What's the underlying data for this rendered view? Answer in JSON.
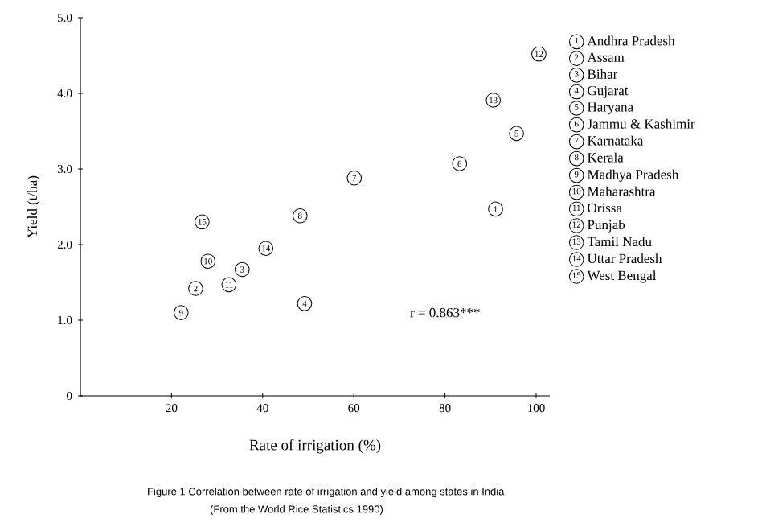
{
  "chart_data": {
    "type": "scatter",
    "title": "Figure 1    Correlation between rate of irrigation and yield among states in India",
    "subtitle": "(From the World Rice Statistics 1990)",
    "xlabel": "Rate of irrigation (%)",
    "ylabel": "Yield (t/ha)",
    "xlim": [
      0,
      103
    ],
    "ylim": [
      0,
      5
    ],
    "xticks": [
      20,
      40,
      60,
      80,
      100
    ],
    "yticks": [
      0,
      {
        "value": 1,
        "label": "1.0"
      },
      {
        "value": 2,
        "label": "2.0"
      },
      {
        "value": 3,
        "label": "3.0"
      },
      {
        "value": 4,
        "label": "4.0"
      },
      {
        "value": 5,
        "label": "5.0"
      }
    ],
    "marker": "circle",
    "legend": "right",
    "grid": false,
    "annotations": [
      "r = 0.863***",
      {
        "text": "1",
        "x": 91.1,
        "y": 2.47
      },
      {
        "text": "2",
        "x": 25.3,
        "y": 1.42
      },
      {
        "text": "3",
        "x": 35.5,
        "y": 1.67
      },
      {
        "text": "4",
        "x": 49.2,
        "y": 1.22
      },
      {
        "text": "5",
        "x": 95.7,
        "y": 3.47
      },
      {
        "text": "6",
        "x": 83.2,
        "y": 3.07
      },
      {
        "text": "7",
        "x": 60.1,
        "y": 2.88
      },
      {
        "text": "8",
        "x": 48.2,
        "y": 2.38
      },
      {
        "text": "9",
        "x": 22.1,
        "y": 1.1
      },
      {
        "text": "10",
        "x": 28.0,
        "y": 1.78
      },
      {
        "text": "11",
        "x": 32.6,
        "y": 1.47
      },
      {
        "text": "12",
        "x": 100.6,
        "y": 4.52
      },
      {
        "text": "13",
        "x": 90.6,
        "y": 3.91
      },
      {
        "text": "14",
        "x": 40.7,
        "y": 1.95
      },
      {
        "text": "15",
        "x": 26.7,
        "y": 2.3
      }
    ],
    "series": [
      {
        "name": "Andhra Pradesh",
        "color": "#000000",
        "x": [
          91.1
        ],
        "values": [
          2.47
        ]
      },
      {
        "name": "Assam",
        "color": "#000000",
        "x": [
          25.3
        ],
        "values": [
          1.42
        ]
      },
      {
        "name": "Bihar",
        "color": "#000000",
        "x": [
          35.5
        ],
        "values": [
          1.67
        ]
      },
      {
        "name": "Gujarat",
        "color": "#000000",
        "x": [
          49.2
        ],
        "values": [
          1.22
        ]
      },
      {
        "name": "Haryana",
        "color": "#000000",
        "x": [
          95.7
        ],
        "values": [
          3.47
        ]
      },
      {
        "name": "Jammu & Kashimir",
        "color": "#000000",
        "x": [
          83.2
        ],
        "values": [
          3.07
        ]
      },
      {
        "name": "Karnataka",
        "color": "#000000",
        "x": [
          60.1
        ],
        "values": [
          2.88
        ]
      },
      {
        "name": "Kerala",
        "color": "#000000",
        "x": [
          48.2
        ],
        "values": [
          2.38
        ]
      },
      {
        "name": "Madhya Pradesh",
        "color": "#000000",
        "x": [
          22.1
        ],
        "values": [
          1.1
        ]
      },
      {
        "name": "Maharashtra",
        "color": "#000000",
        "x": [
          28.0
        ],
        "values": [
          1.78
        ]
      },
      {
        "name": "Orissa",
        "color": "#000000",
        "x": [
          32.6
        ],
        "values": [
          1.47
        ]
      },
      {
        "name": "Punjab",
        "color": "#000000",
        "x": [
          100.6
        ],
        "values": [
          4.52
        ]
      },
      {
        "name": "Tamil Nadu",
        "color": "#000000",
        "x": [
          90.6
        ],
        "values": [
          3.91
        ]
      },
      {
        "name": "Uttar Pradesh",
        "color": "#000000",
        "x": [
          40.7
        ],
        "values": [
          1.95
        ]
      },
      {
        "name": "West Bengal",
        "color": "#000000",
        "x": [
          26.7
        ],
        "values": [
          2.3
        ]
      }
    ]
  }
}
